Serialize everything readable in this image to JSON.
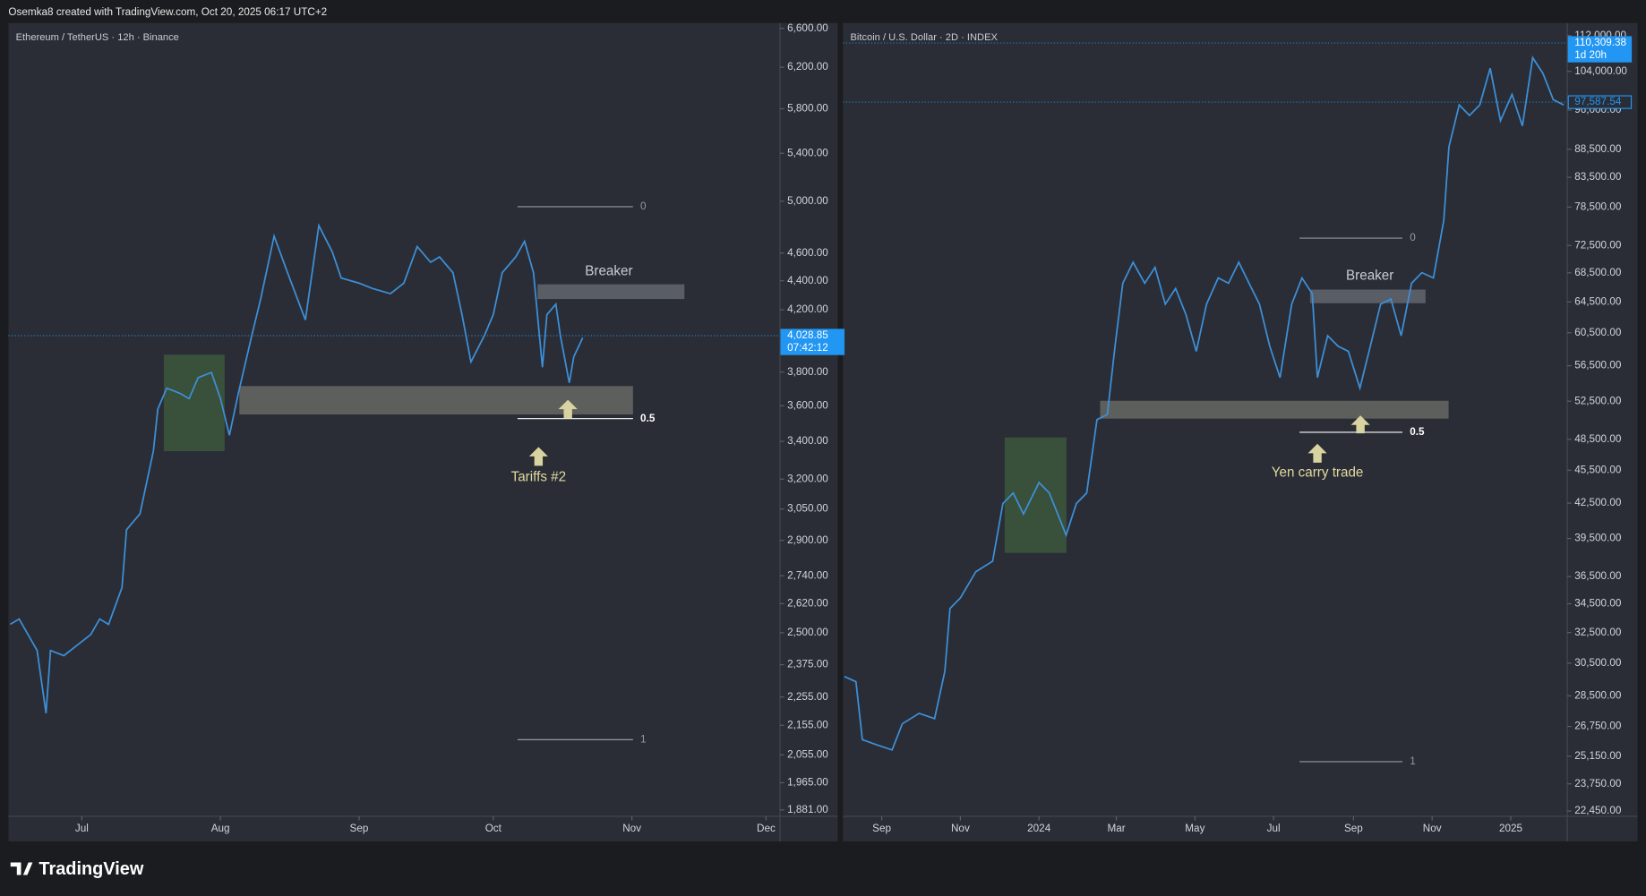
{
  "header": {
    "text": "Osemka8 created with TradingView.com, Oct 20, 2025 06:17 UTC+2"
  },
  "footer": {
    "logo": "TradingView"
  },
  "chart_data": [
    {
      "type": "line",
      "title": "Ethereum / TetherUS · 12h · Binance",
      "log_scale": true,
      "grid": false,
      "color": "#3d8fd8",
      "x": [
        -16,
        -14,
        -10,
        -8,
        -7,
        -4,
        -1,
        2,
        4,
        6,
        9,
        10,
        13,
        16,
        17,
        19,
        22,
        24,
        26,
        29,
        31,
        33,
        35,
        38,
        40,
        43,
        46,
        50,
        53,
        56,
        58,
        62,
        65,
        69,
        72,
        75,
        78,
        80,
        83,
        85,
        87,
        90,
        92,
        94,
        97,
        99,
        101,
        103,
        104,
        106,
        107,
        109,
        110,
        112
      ],
      "values": [
        2534,
        2556,
        2430,
        2197,
        2430,
        2410,
        2451,
        2493,
        2556,
        2534,
        2689,
        2950,
        3026,
        3348,
        3581,
        3703,
        3672,
        3641,
        3766,
        3798,
        3641,
        3433,
        3672,
        4029,
        4274,
        4728,
        4458,
        4132,
        4808,
        4610,
        4420,
        4383,
        4346,
        4310,
        4383,
        4649,
        4533,
        4572,
        4458,
        4167,
        3863,
        4029,
        4167,
        4458,
        4572,
        4688,
        4458,
        3830,
        4167,
        4238,
        4029,
        3735,
        3895,
        4015
      ],
      "xlim": [
        -16.4,
        156.1
      ],
      "xticks": [
        {
          "value": 0,
          "label": "Jul"
        },
        {
          "value": 31,
          "label": "Aug"
        },
        {
          "value": 62,
          "label": "Sep"
        },
        {
          "value": 92,
          "label": "Oct"
        },
        {
          "value": 123,
          "label": "Nov"
        },
        {
          "value": 153,
          "label": "Dec"
        }
      ],
      "ylim": [
        1862,
        6656
      ],
      "yticks": [
        {
          "value": 6600,
          "label": "6,600.00"
        },
        {
          "value": 6200,
          "label": "6,200.00"
        },
        {
          "value": 5800,
          "label": "5,800.00"
        },
        {
          "value": 5400,
          "label": "5,400.00"
        },
        {
          "value": 5000,
          "label": "5,000.00"
        },
        {
          "value": 4600,
          "label": "4,600.00"
        },
        {
          "value": 4400,
          "label": "4,400.00"
        },
        {
          "value": 4200,
          "label": "4,200.00"
        },
        {
          "value": 3800,
          "label": "3,800.00"
        },
        {
          "value": 3600,
          "label": "3,600.00"
        },
        {
          "value": 3400,
          "label": "3,400.00"
        },
        {
          "value": 3200,
          "label": "3,200.00"
        },
        {
          "value": 3050,
          "label": "3,050.00"
        },
        {
          "value": 2900,
          "label": "2,900.00"
        },
        {
          "value": 2740,
          "label": "2,740.00"
        },
        {
          "value": 2620,
          "label": "2,620.00"
        },
        {
          "value": 2500,
          "label": "2,500.00"
        },
        {
          "value": 2375,
          "label": "2,375.00"
        },
        {
          "value": 2255,
          "label": "2,255.00"
        },
        {
          "value": 2155,
          "label": "2,155.00"
        },
        {
          "value": 2055,
          "label": "2,055.00"
        },
        {
          "value": 1965,
          "label": "1,965.00"
        },
        {
          "value": 1881,
          "label": "1,881.00"
        }
      ],
      "price_labels": [
        {
          "value": 4028.85,
          "label": "4,028.85",
          "sub": "07:42:12"
        }
      ],
      "fib_labels": [
        "0",
        "0.5",
        "1"
      ],
      "zone_label": "Breaker",
      "event_label": "Tariffs #2"
    },
    {
      "type": "line",
      "title": "Bitcoin / U.S. Dollar · 2D · INDEX",
      "log_scale": true,
      "grid": false,
      "color": "#3d8fd8",
      "x": [
        -29,
        -20,
        -15,
        -4,
        8,
        16,
        29,
        41,
        49,
        53,
        61,
        73,
        86,
        94,
        102,
        110,
        122,
        130,
        143,
        151,
        159,
        167,
        175,
        181,
        187,
        195,
        204,
        212,
        220,
        228,
        236,
        244,
        252,
        261,
        269,
        277,
        285,
        293,
        301,
        309,
        318,
        326,
        334,
        338,
        346,
        354,
        362,
        371,
        379,
        387,
        395,
        403,
        411,
        419,
        428,
        436,
        440,
        448,
        456,
        464,
        472,
        480,
        489,
        497,
        505,
        513,
        521,
        529
      ],
      "values": [
        29670,
        29345,
        26030,
        25750,
        25480,
        26900,
        27490,
        27190,
        29990,
        34170,
        34920,
        36870,
        37680,
        42470,
        43400,
        41550,
        44350,
        43400,
        39780,
        42470,
        43400,
        50530,
        51080,
        58840,
        67040,
        70020,
        67040,
        69270,
        64190,
        66330,
        62810,
        58210,
        64190,
        67780,
        67040,
        70020,
        67040,
        64190,
        58840,
        55130,
        64190,
        67780,
        65600,
        55130,
        60130,
        58840,
        58210,
        53940,
        58840,
        64190,
        64890,
        60130,
        67040,
        68520,
        67780,
        76380,
        88940,
        97030,
        94940,
        97030,
        104700,
        93910,
        99150,
        92890,
        107000,
        103570,
        98090,
        97030
      ],
      "xlim": [
        -30.1,
        531.8
      ],
      "xticks": [
        {
          "value": 0,
          "label": "Sep"
        },
        {
          "value": 61,
          "label": "Nov"
        },
        {
          "value": 122,
          "label": "2024"
        },
        {
          "value": 182,
          "label": "Mar"
        },
        {
          "value": 243,
          "label": "May"
        },
        {
          "value": 304,
          "label": "Jul"
        },
        {
          "value": 366,
          "label": "Sep"
        },
        {
          "value": 427,
          "label": "Nov"
        },
        {
          "value": 488,
          "label": "2025"
        }
      ],
      "ylim": [
        22207,
        114960
      ],
      "yticks": [
        {
          "value": 112000,
          "label": "112,000.00"
        },
        {
          "value": 104000,
          "label": "104,000.00"
        },
        {
          "value": 96000,
          "label": "96,000.00"
        },
        {
          "value": 88500,
          "label": "88,500.00"
        },
        {
          "value": 83500,
          "label": "83,500.00"
        },
        {
          "value": 78500,
          "label": "78,500.00"
        },
        {
          "value": 72500,
          "label": "72,500.00"
        },
        {
          "value": 68500,
          "label": "68,500.00"
        },
        {
          "value": 64500,
          "label": "64,500.00"
        },
        {
          "value": 60500,
          "label": "60,500.00"
        },
        {
          "value": 56500,
          "label": "56,500.00"
        },
        {
          "value": 52500,
          "label": "52,500.00"
        },
        {
          "value": 48500,
          "label": "48,500.00"
        },
        {
          "value": 45500,
          "label": "45,500.00"
        },
        {
          "value": 42500,
          "label": "42,500.00"
        },
        {
          "value": 39500,
          "label": "39,500.00"
        },
        {
          "value": 36500,
          "label": "36,500.00"
        },
        {
          "value": 34500,
          "label": "34,500.00"
        },
        {
          "value": 32500,
          "label": "32,500.00"
        },
        {
          "value": 30500,
          "label": "30,500.00"
        },
        {
          "value": 28500,
          "label": "28,500.00"
        },
        {
          "value": 26750,
          "label": "26,750.00"
        },
        {
          "value": 25150,
          "label": "25,150.00"
        },
        {
          "value": 23750,
          "label": "23,750.00"
        },
        {
          "value": 22450,
          "label": "22,450.00"
        }
      ],
      "price_labels": [
        {
          "value": 110309.38,
          "label": "110,309.38",
          "sub": "1d 20h"
        },
        {
          "value": 97587.54,
          "label": "97,587.54"
        }
      ],
      "fib_labels": [
        "0",
        "0.5",
        "1"
      ],
      "zone_label": "Breaker",
      "event_label": "Yen carry trade"
    }
  ]
}
